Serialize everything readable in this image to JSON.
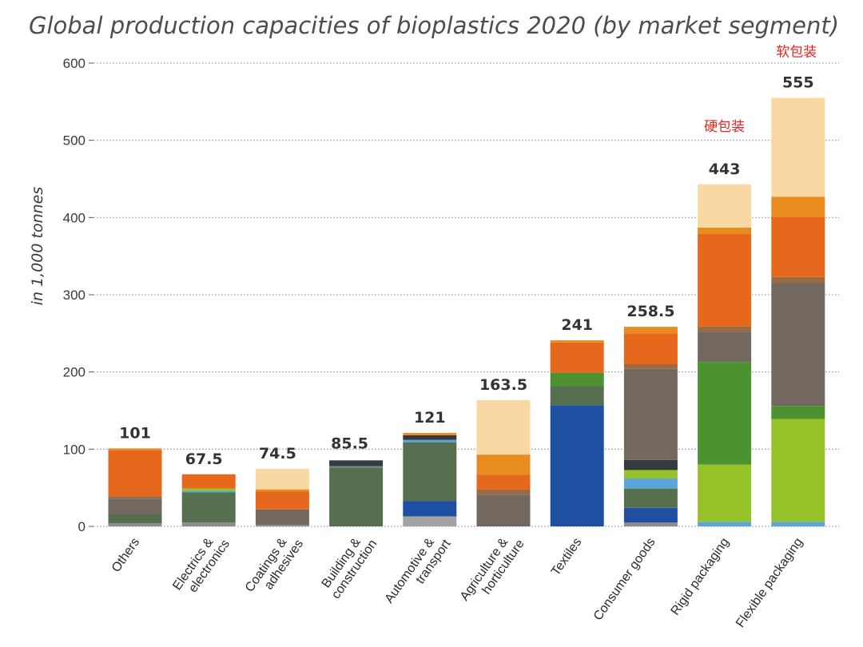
{
  "chart_data": {
    "type": "stacked-bar",
    "title": "Global production capacities of bioplastics 2020 (by market segment)",
    "ylabel": "in 1,000 tonnes",
    "ylim": [
      0,
      600
    ],
    "yticks": [
      0,
      100,
      200,
      300,
      400,
      500,
      600
    ],
    "grid": "dotted-horizontal",
    "categories": [
      {
        "lines": [
          "Others"
        ],
        "total_label": "101"
      },
      {
        "lines": [
          "Electrics &",
          "electronics"
        ],
        "total_label": "67.5"
      },
      {
        "lines": [
          "Coatings &",
          "adhesives"
        ],
        "total_label": "74.5"
      },
      {
        "lines": [
          "Building &",
          "construction"
        ],
        "total_label": "85.5"
      },
      {
        "lines": [
          "Automotive &",
          "transport"
        ],
        "total_label": "121"
      },
      {
        "lines": [
          "Agriculture &",
          "horticulture"
        ],
        "total_label": "163.5"
      },
      {
        "lines": [
          "Textiles"
        ],
        "total_label": "241"
      },
      {
        "lines": [
          "Consumer goods"
        ],
        "total_label": "258.5"
      },
      {
        "lines": [
          "Rigid packaging"
        ],
        "total_label": "443"
      },
      {
        "lines": [
          "Flexible packaging"
        ],
        "total_label": "555"
      }
    ],
    "totals": [
      101,
      67.5,
      74.5,
      85.5,
      121,
      163.5,
      241,
      258.5,
      443,
      555
    ],
    "segments": [
      [
        {
          "v": 4,
          "color": "#8c8c8c"
        },
        {
          "v": 12,
          "color": "#566f4f"
        },
        {
          "v": 20,
          "color": "#72685f"
        },
        {
          "v": 3,
          "color": "#9a6a45"
        },
        {
          "v": 60,
          "color": "#e5681d"
        },
        {
          "v": 2,
          "color": "#e88c20"
        }
      ],
      [
        {
          "v": 5,
          "color": "#8c8c8c"
        },
        {
          "v": 39,
          "color": "#566f4f"
        },
        {
          "v": 2,
          "color": "#5da5d8"
        },
        {
          "v": 3,
          "color": "#97c32a"
        },
        {
          "v": 18.5,
          "color": "#e5681d"
        }
      ],
      [
        {
          "v": 2,
          "color": "#8c8c8c"
        },
        {
          "v": 20,
          "color": "#72685f"
        },
        {
          "v": 23,
          "color": "#e5681d"
        },
        {
          "v": 3,
          "color": "#e88c20"
        },
        {
          "v": 26.5,
          "color": "#fad8a4"
        }
      ],
      [
        {
          "v": 76,
          "color": "#566f4f"
        },
        {
          "v": 2,
          "color": "#7c8a85"
        },
        {
          "v": 7.5,
          "color": "#333a40"
        }
      ],
      [
        {
          "v": 13,
          "color": "#a3a3a3"
        },
        {
          "v": 20,
          "color": "#1f4fa0"
        },
        {
          "v": 76,
          "color": "#566f4f"
        },
        {
          "v": 3,
          "color": "#5da5d8"
        },
        {
          "v": 6,
          "color": "#333a40"
        },
        {
          "v": 3,
          "color": "#e88c20"
        }
      ],
      [
        {
          "v": 41,
          "color": "#72685f"
        },
        {
          "v": 7,
          "color": "#9a6a45"
        },
        {
          "v": 19,
          "color": "#e5681d"
        },
        {
          "v": 26,
          "color": "#e88c20"
        },
        {
          "v": 70.5,
          "color": "#fad8a4"
        }
      ],
      [
        {
          "v": 157,
          "color": "#1f4fa0"
        },
        {
          "v": 25,
          "color": "#566f4f"
        },
        {
          "v": 17,
          "color": "#4c922f"
        },
        {
          "v": 39,
          "color": "#e5681d"
        },
        {
          "v": 3,
          "color": "#e88c20"
        }
      ],
      [
        {
          "v": 5,
          "color": "#8c8c8c"
        },
        {
          "v": 19,
          "color": "#1f4fa0"
        },
        {
          "v": 25,
          "color": "#566f4f"
        },
        {
          "v": 13,
          "color": "#5da5d8"
        },
        {
          "v": 11,
          "color": "#97c32a"
        },
        {
          "v": 13,
          "color": "#333a40"
        },
        {
          "v": 118,
          "color": "#72685f"
        },
        {
          "v": 6,
          "color": "#9a6a45"
        },
        {
          "v": 40,
          "color": "#e5681d"
        },
        {
          "v": 8.5,
          "color": "#e88c20"
        }
      ],
      [
        {
          "v": 6,
          "color": "#5da5d8"
        },
        {
          "v": 74,
          "color": "#97c32a"
        },
        {
          "v": 133,
          "color": "#4c922f"
        },
        {
          "v": 39,
          "color": "#72685f"
        },
        {
          "v": 7,
          "color": "#9a6a45"
        },
        {
          "v": 120,
          "color": "#e5681d"
        },
        {
          "v": 8,
          "color": "#e88c20"
        },
        {
          "v": 56,
          "color": "#fad8a4"
        }
      ],
      [
        {
          "v": 6,
          "color": "#5da5d8"
        },
        {
          "v": 133,
          "color": "#97c32a"
        },
        {
          "v": 17,
          "color": "#4c922f"
        },
        {
          "v": 159,
          "color": "#72685f"
        },
        {
          "v": 8,
          "color": "#9a6a45"
        },
        {
          "v": 78,
          "color": "#e5681d"
        },
        {
          "v": 26,
          "color": "#e88c20"
        },
        {
          "v": 128,
          "color": "#fad8a4"
        }
      ]
    ],
    "annotations": [
      {
        "text": "软包装",
        "category_index": 9
      },
      {
        "text": "硬包装",
        "category_index": 8
      }
    ]
  }
}
